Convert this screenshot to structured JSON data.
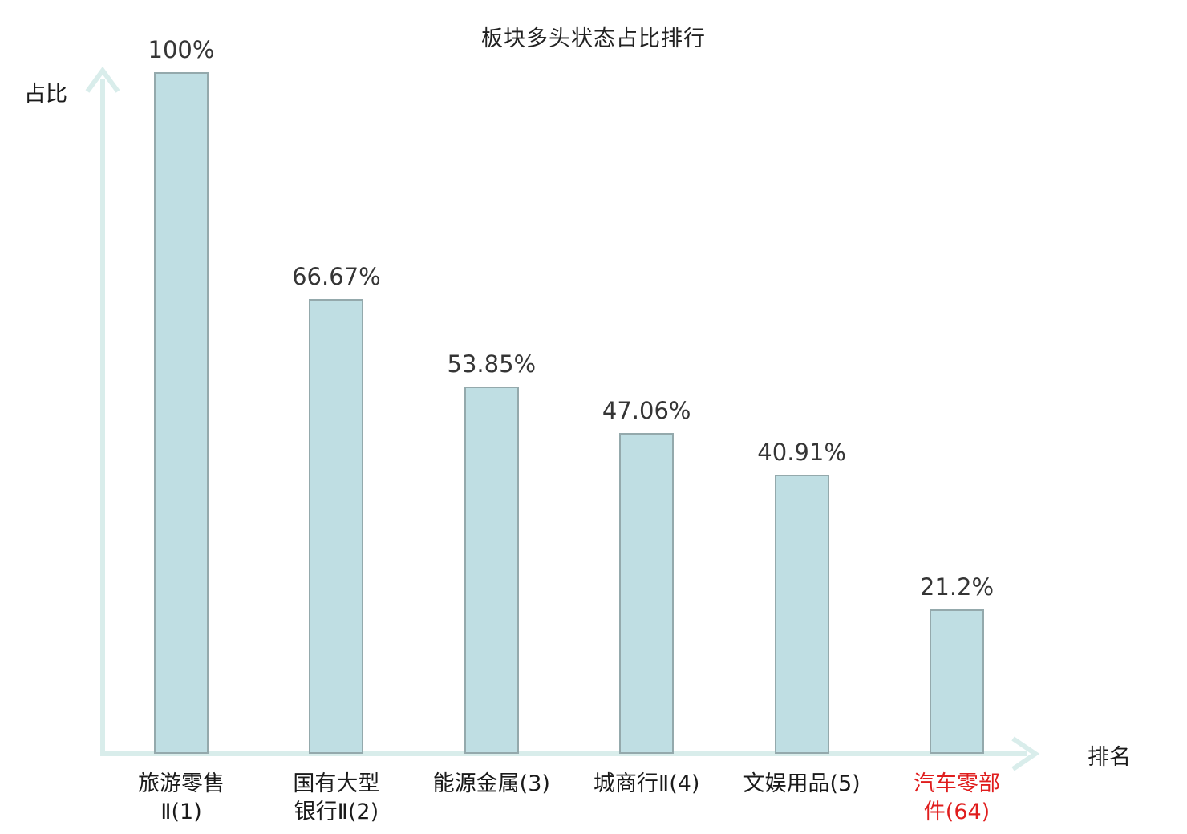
{
  "chart_data": {
    "type": "bar",
    "title": "板块多头状态占比排行",
    "xlabel": "排名",
    "ylabel": "占比",
    "categories": [
      "旅游零售Ⅱ(1)",
      "国有大型银行Ⅱ(2)",
      "能源金属(3)",
      "城商行Ⅱ(4)",
      "文娱用品(5)",
      "汽车零部件(64)"
    ],
    "category_lines": [
      [
        "旅游零售",
        "Ⅱ(1)"
      ],
      [
        "国有大型",
        "银行Ⅱ(2)"
      ],
      [
        "能源金属(3)"
      ],
      [
        "城商行Ⅱ(4)"
      ],
      [
        "文娱用品(5)"
      ],
      [
        "汽车零部",
        "件(64)"
      ]
    ],
    "values": [
      100,
      66.67,
      53.85,
      47.06,
      40.91,
      21.2
    ],
    "value_labels": [
      "100%",
      "66.67%",
      "53.85%",
      "47.06%",
      "40.91%",
      "21.2%"
    ],
    "highlighted_index": 5,
    "ylim": [
      0,
      100
    ],
    "grid": false,
    "legend": false,
    "colors": {
      "bar_fill": "#bfdee3",
      "bar_border": "#94a9ac",
      "axis": "#d9edeb",
      "value_text": "#353535",
      "category_text": "#1a1a1a",
      "highlight_text": "#e01d1d"
    }
  }
}
